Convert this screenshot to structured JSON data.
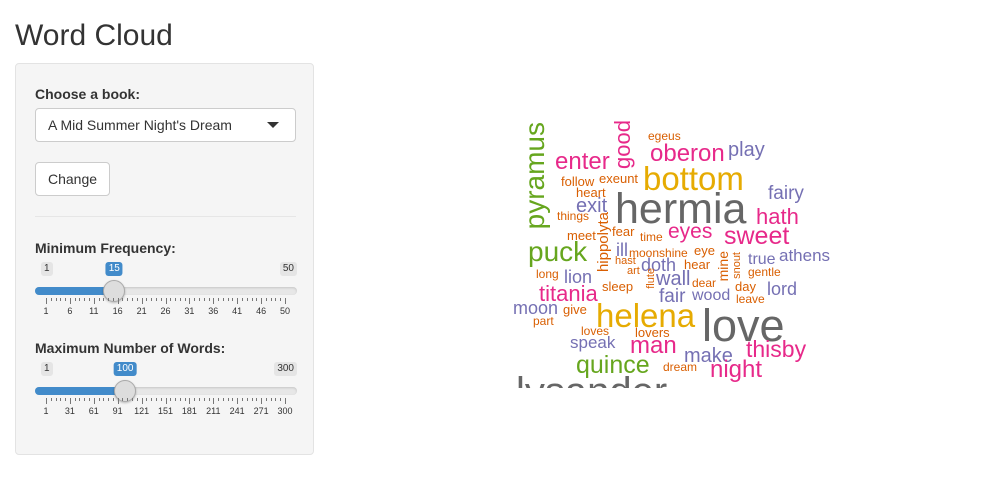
{
  "page": {
    "title": "Word Cloud"
  },
  "controls": {
    "book_label": "Choose a book:",
    "book_selected": "A Mid Summer Night's Dream",
    "change_label": "Change",
    "min_freq": {
      "label": "Minimum Frequency:",
      "min": 1,
      "max": 50,
      "value": 15,
      "min_label": "1",
      "max_label": "50",
      "value_label": "15",
      "ticks": [
        "1",
        "6",
        "11",
        "16",
        "21",
        "26",
        "31",
        "36",
        "41",
        "46",
        "50"
      ]
    },
    "max_words": {
      "label": "Maximum Number of Words:",
      "min": 1,
      "max": 300,
      "value": 100,
      "min_label": "1",
      "max_label": "300",
      "value_label": "100",
      "ticks": [
        "1",
        "31",
        "61",
        "91",
        "121",
        "151",
        "181",
        "211",
        "241",
        "271",
        "300"
      ]
    }
  },
  "colors": {
    "accent": "#428bca",
    "green": "#66a61e",
    "magenta": "#e7298a",
    "orange": "#d95f02",
    "gold": "#e6ab02",
    "purple": "#7570b3",
    "gray": "#666666"
  },
  "cloud": {
    "words": [
      {
        "text": "pyramus",
        "color": "green",
        "vertical": true
      },
      {
        "text": "good",
        "color": "magenta",
        "vertical": true
      },
      {
        "text": "egeus",
        "color": "orange"
      },
      {
        "text": "enter",
        "color": "magenta"
      },
      {
        "text": "oberon",
        "color": "magenta"
      },
      {
        "text": "play",
        "color": "purple"
      },
      {
        "text": "bottom",
        "color": "gold"
      },
      {
        "text": "follow",
        "color": "orange"
      },
      {
        "text": "exeunt",
        "color": "orange"
      },
      {
        "text": "heart",
        "color": "orange"
      },
      {
        "text": "fairy",
        "color": "purple"
      },
      {
        "text": "exit",
        "color": "purple"
      },
      {
        "text": "hermia",
        "color": "gray"
      },
      {
        "text": "things",
        "color": "orange"
      },
      {
        "text": "hath",
        "color": "magenta"
      },
      {
        "text": "hippolyta",
        "color": "orange",
        "vertical": true
      },
      {
        "text": "fear",
        "color": "orange"
      },
      {
        "text": "eyes",
        "color": "magenta"
      },
      {
        "text": "meet",
        "color": "orange"
      },
      {
        "text": "time",
        "color": "orange"
      },
      {
        "text": "sweet",
        "color": "magenta"
      },
      {
        "text": "puck",
        "color": "green"
      },
      {
        "text": "ill",
        "color": "purple"
      },
      {
        "text": "moonshine",
        "color": "orange"
      },
      {
        "text": "eye",
        "color": "orange"
      },
      {
        "text": "athens",
        "color": "purple"
      },
      {
        "text": "doth",
        "color": "purple"
      },
      {
        "text": "hast",
        "color": "orange"
      },
      {
        "text": "hear",
        "color": "orange"
      },
      {
        "text": "mine",
        "color": "orange",
        "vertical": true
      },
      {
        "text": "snout",
        "color": "orange",
        "vertical": true
      },
      {
        "text": "true",
        "color": "purple"
      },
      {
        "text": "long",
        "color": "orange"
      },
      {
        "text": "lion",
        "color": "purple"
      },
      {
        "text": "art",
        "color": "orange"
      },
      {
        "text": "wall",
        "color": "purple"
      },
      {
        "text": "gentle",
        "color": "orange"
      },
      {
        "text": "flute",
        "color": "orange",
        "vertical": true
      },
      {
        "text": "dear",
        "color": "orange"
      },
      {
        "text": "day",
        "color": "orange"
      },
      {
        "text": "titania",
        "color": "magenta"
      },
      {
        "text": "sleep",
        "color": "orange"
      },
      {
        "text": "fair",
        "color": "purple"
      },
      {
        "text": "wood",
        "color": "purple"
      },
      {
        "text": "lord",
        "color": "purple"
      },
      {
        "text": "leave",
        "color": "orange"
      },
      {
        "text": "moon",
        "color": "purple"
      },
      {
        "text": "give",
        "color": "orange"
      },
      {
        "text": "helena",
        "color": "gold"
      },
      {
        "text": "love",
        "color": "gray"
      },
      {
        "text": "part",
        "color": "orange"
      },
      {
        "text": "loves",
        "color": "orange"
      },
      {
        "text": "lovers",
        "color": "orange"
      },
      {
        "text": "speak",
        "color": "purple"
      },
      {
        "text": "man",
        "color": "magenta"
      },
      {
        "text": "make",
        "color": "purple"
      },
      {
        "text": "thisby",
        "color": "magenta"
      },
      {
        "text": "quince",
        "color": "green"
      },
      {
        "text": "dream",
        "color": "orange"
      },
      {
        "text": "night",
        "color": "magenta"
      },
      {
        "text": "lysander",
        "color": "gray"
      }
    ]
  }
}
